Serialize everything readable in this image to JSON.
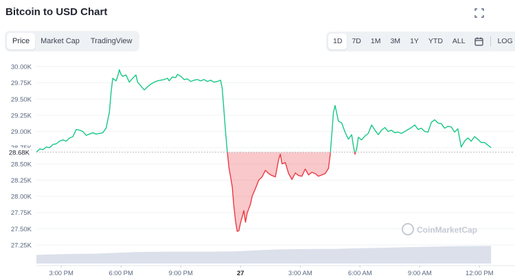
{
  "header": {
    "title": "Bitcoin to USD Chart",
    "expand_icon": "expand-icon"
  },
  "tabs": [
    {
      "label": "Price",
      "active": true
    },
    {
      "label": "Market Cap",
      "active": false
    },
    {
      "label": "TradingView",
      "active": false
    }
  ],
  "ranges": [
    {
      "label": "1D",
      "active": true
    },
    {
      "label": "7D",
      "active": false
    },
    {
      "label": "1M",
      "active": false
    },
    {
      "label": "3M",
      "active": false
    },
    {
      "label": "1Y",
      "active": false
    },
    {
      "label": "YTD",
      "active": false
    },
    {
      "label": "ALL",
      "active": false
    }
  ],
  "calendar_icon": "calendar-icon",
  "log_label": "LOG",
  "watermark": "CoinMarketCap",
  "colors": {
    "up": "#16c784",
    "down": "#ea3943",
    "baseline": "#b5b9c3",
    "volume": "#cfd6e4"
  },
  "chart_data": {
    "type": "line",
    "title": "Bitcoin to USD Chart",
    "baseline_value": 28680,
    "baseline_label": "28.68K",
    "ylim": [
      27170,
      30100
    ],
    "yticks": [
      "30.00K",
      "29.75K",
      "29.50K",
      "29.25K",
      "29.00K",
      "28.75K",
      "28.50K",
      "28.25K",
      "28.00K",
      "27.75K",
      "27.50K",
      "27.25K"
    ],
    "ytick_values": [
      30000,
      29750,
      29500,
      29250,
      29000,
      28750,
      28500,
      28250,
      28000,
      27750,
      27500,
      27250
    ],
    "xlim": [
      0,
      1440
    ],
    "xticks": [
      {
        "label": "3:00 PM",
        "minute": 75,
        "bold": false
      },
      {
        "label": "6:00 PM",
        "minute": 255,
        "bold": false
      },
      {
        "label": "9:00 PM",
        "minute": 435,
        "bold": false
      },
      {
        "label": "27",
        "minute": 615,
        "bold": true
      },
      {
        "label": "3:00 AM",
        "minute": 795,
        "bold": false
      },
      {
        "label": "6:00 AM",
        "minute": 975,
        "bold": false
      },
      {
        "label": "9:00 AM",
        "minute": 1155,
        "bold": false
      },
      {
        "label": "12:00 PM",
        "minute": 1335,
        "bold": false
      }
    ],
    "grid": true,
    "series": [
      {
        "points": [
          [
            0,
            28680
          ],
          [
            10,
            28730
          ],
          [
            20,
            28720
          ],
          [
            30,
            28760
          ],
          [
            40,
            28750
          ],
          [
            50,
            28800
          ],
          [
            60,
            28810
          ],
          [
            70,
            28850
          ],
          [
            80,
            28870
          ],
          [
            90,
            28850
          ],
          [
            100,
            28900
          ],
          [
            110,
            28920
          ],
          [
            120,
            29030
          ],
          [
            130,
            29020
          ],
          [
            140,
            29000
          ],
          [
            150,
            28940
          ],
          [
            160,
            28960
          ],
          [
            170,
            28980
          ],
          [
            180,
            28960
          ],
          [
            190,
            28970
          ],
          [
            200,
            28980
          ],
          [
            210,
            29050
          ],
          [
            220,
            29300
          ],
          [
            225,
            29600
          ],
          [
            230,
            29820
          ],
          [
            240,
            29780
          ],
          [
            245,
            29850
          ],
          [
            250,
            29950
          ],
          [
            255,
            29880
          ],
          [
            260,
            29850
          ],
          [
            270,
            29870
          ],
          [
            280,
            29760
          ],
          [
            290,
            29820
          ],
          [
            300,
            29870
          ],
          [
            305,
            29760
          ],
          [
            315,
            29700
          ],
          [
            325,
            29640
          ],
          [
            335,
            29690
          ],
          [
            345,
            29730
          ],
          [
            355,
            29760
          ],
          [
            365,
            29780
          ],
          [
            375,
            29790
          ],
          [
            385,
            29800
          ],
          [
            395,
            29820
          ],
          [
            400,
            29780
          ],
          [
            410,
            29840
          ],
          [
            420,
            29830
          ],
          [
            425,
            29880
          ],
          [
            435,
            29850
          ],
          [
            445,
            29800
          ],
          [
            455,
            29810
          ],
          [
            465,
            29770
          ],
          [
            475,
            29790
          ],
          [
            485,
            29800
          ],
          [
            495,
            29780
          ],
          [
            505,
            29800
          ],
          [
            515,
            29770
          ],
          [
            525,
            29790
          ],
          [
            535,
            29760
          ],
          [
            545,
            29770
          ],
          [
            555,
            29790
          ],
          [
            560,
            29660
          ],
          [
            565,
            29330
          ],
          [
            570,
            28990
          ],
          [
            575,
            28700
          ],
          [
            580,
            28450
          ],
          [
            585,
            28300
          ],
          [
            590,
            28150
          ],
          [
            595,
            27850
          ],
          [
            600,
            27620
          ],
          [
            605,
            27460
          ],
          [
            610,
            27470
          ],
          [
            615,
            27590
          ],
          [
            620,
            27680
          ],
          [
            625,
            27780
          ],
          [
            630,
            27600
          ],
          [
            635,
            27740
          ],
          [
            640,
            27810
          ],
          [
            645,
            27880
          ],
          [
            650,
            28000
          ],
          [
            660,
            28120
          ],
          [
            670,
            28250
          ],
          [
            680,
            28300
          ],
          [
            690,
            28400
          ],
          [
            700,
            28350
          ],
          [
            710,
            28320
          ],
          [
            720,
            28300
          ],
          [
            730,
            28570
          ],
          [
            735,
            28650
          ],
          [
            740,
            28500
          ],
          [
            750,
            28520
          ],
          [
            760,
            28350
          ],
          [
            770,
            28260
          ],
          [
            780,
            28360
          ],
          [
            790,
            28320
          ],
          [
            800,
            28310
          ],
          [
            810,
            28420
          ],
          [
            820,
            28330
          ],
          [
            830,
            28370
          ],
          [
            840,
            28350
          ],
          [
            850,
            28310
          ],
          [
            860,
            28330
          ],
          [
            870,
            28350
          ],
          [
            880,
            28430
          ],
          [
            885,
            28630
          ],
          [
            890,
            28950
          ],
          [
            895,
            29290
          ],
          [
            900,
            29400
          ],
          [
            910,
            29160
          ],
          [
            920,
            29130
          ],
          [
            930,
            28990
          ],
          [
            940,
            28880
          ],
          [
            950,
            28950
          ],
          [
            955,
            28780
          ],
          [
            960,
            28650
          ],
          [
            965,
            28730
          ],
          [
            970,
            28910
          ],
          [
            980,
            28870
          ],
          [
            990,
            28930
          ],
          [
            1000,
            28970
          ],
          [
            1010,
            29100
          ],
          [
            1020,
            29020
          ],
          [
            1030,
            28950
          ],
          [
            1040,
            29020
          ],
          [
            1050,
            29060
          ],
          [
            1060,
            29000
          ],
          [
            1070,
            29020
          ],
          [
            1080,
            28980
          ],
          [
            1090,
            28990
          ],
          [
            1100,
            28970
          ],
          [
            1110,
            29000
          ],
          [
            1120,
            29030
          ],
          [
            1130,
            29060
          ],
          [
            1140,
            29100
          ],
          [
            1150,
            29030
          ],
          [
            1160,
            29050
          ],
          [
            1170,
            29000
          ],
          [
            1180,
            28990
          ],
          [
            1190,
            29140
          ],
          [
            1200,
            29180
          ],
          [
            1210,
            29130
          ],
          [
            1220,
            29120
          ],
          [
            1230,
            29050
          ],
          [
            1240,
            29080
          ],
          [
            1250,
            29070
          ],
          [
            1260,
            28990
          ],
          [
            1270,
            29040
          ],
          [
            1280,
            28760
          ],
          [
            1290,
            28850
          ],
          [
            1300,
            28900
          ],
          [
            1310,
            28850
          ],
          [
            1320,
            28920
          ],
          [
            1330,
            28880
          ],
          [
            1340,
            28830
          ],
          [
            1350,
            28830
          ],
          [
            1360,
            28790
          ],
          [
            1370,
            28750
          ]
        ]
      }
    ],
    "volume": {
      "points": [
        [
          0,
          0.42
        ],
        [
          60,
          0.45
        ],
        [
          120,
          0.47
        ],
        [
          180,
          0.48
        ],
        [
          240,
          0.52
        ],
        [
          300,
          0.56
        ],
        [
          360,
          0.57
        ],
        [
          420,
          0.58
        ],
        [
          480,
          0.58
        ],
        [
          540,
          0.58
        ],
        [
          600,
          0.59
        ],
        [
          660,
          0.64
        ],
        [
          720,
          0.68
        ],
        [
          780,
          0.7
        ],
        [
          840,
          0.71
        ],
        [
          900,
          0.71
        ],
        [
          960,
          0.74
        ],
        [
          1020,
          0.76
        ],
        [
          1080,
          0.78
        ],
        [
          1140,
          0.8
        ],
        [
          1200,
          0.82
        ],
        [
          1260,
          0.84
        ],
        [
          1320,
          0.85
        ],
        [
          1370,
          0.86
        ]
      ]
    }
  }
}
